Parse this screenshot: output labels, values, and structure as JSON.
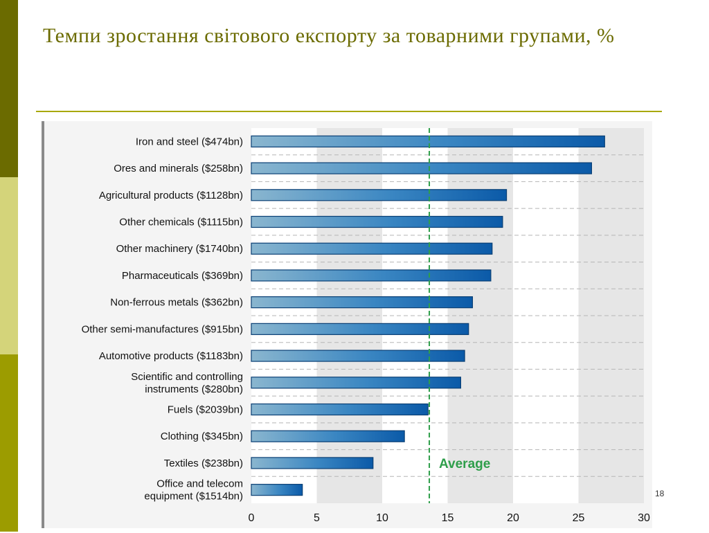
{
  "slide": {
    "title": "Темпи зростання світового експорту за товарними групами,  %",
    "page_number": "18"
  },
  "colors": {
    "side_dark": "#6b6b00",
    "side_light": "#d4d47a",
    "side_mid": "#9c9c00",
    "title": "#6b6b00",
    "rule": "#a8a800",
    "bar": "#1f6fb5",
    "average": "#2e9e4a"
  },
  "chart_data": {
    "type": "bar",
    "orientation": "horizontal",
    "title": "",
    "xlabel": "",
    "ylabel": "",
    "xlim": [
      0,
      30
    ],
    "x_ticks": [
      "0",
      "5",
      "10",
      "15",
      "20",
      "25",
      "30"
    ],
    "categories": [
      "Iron and steel ($474bn)",
      "Ores and minerals ($258bn)",
      "Agricultural products ($1128bn)",
      "Other chemicals ($1115bn)",
      "Other machinery ($1740bn)",
      "Pharmaceuticals ($369bn)",
      "Non-ferrous metals ($362bn)",
      "Other semi-manufactures ($915bn)",
      "Automotive products ($1183bn)",
      "Scientific and controlling\ninstruments ($280bn)",
      "Fuels ($2039bn)",
      "Clothing ($345bn)",
      "Textiles ($238bn)",
      "Office and telecom\nequipment ($1514bn)"
    ],
    "values": [
      27,
      26,
      19.5,
      19.2,
      18.4,
      18.3,
      16.9,
      16.6,
      16.3,
      16.0,
      13.5,
      11.7,
      9.3,
      3.9
    ],
    "average": 13.6,
    "average_label": "Average",
    "grid": true
  }
}
